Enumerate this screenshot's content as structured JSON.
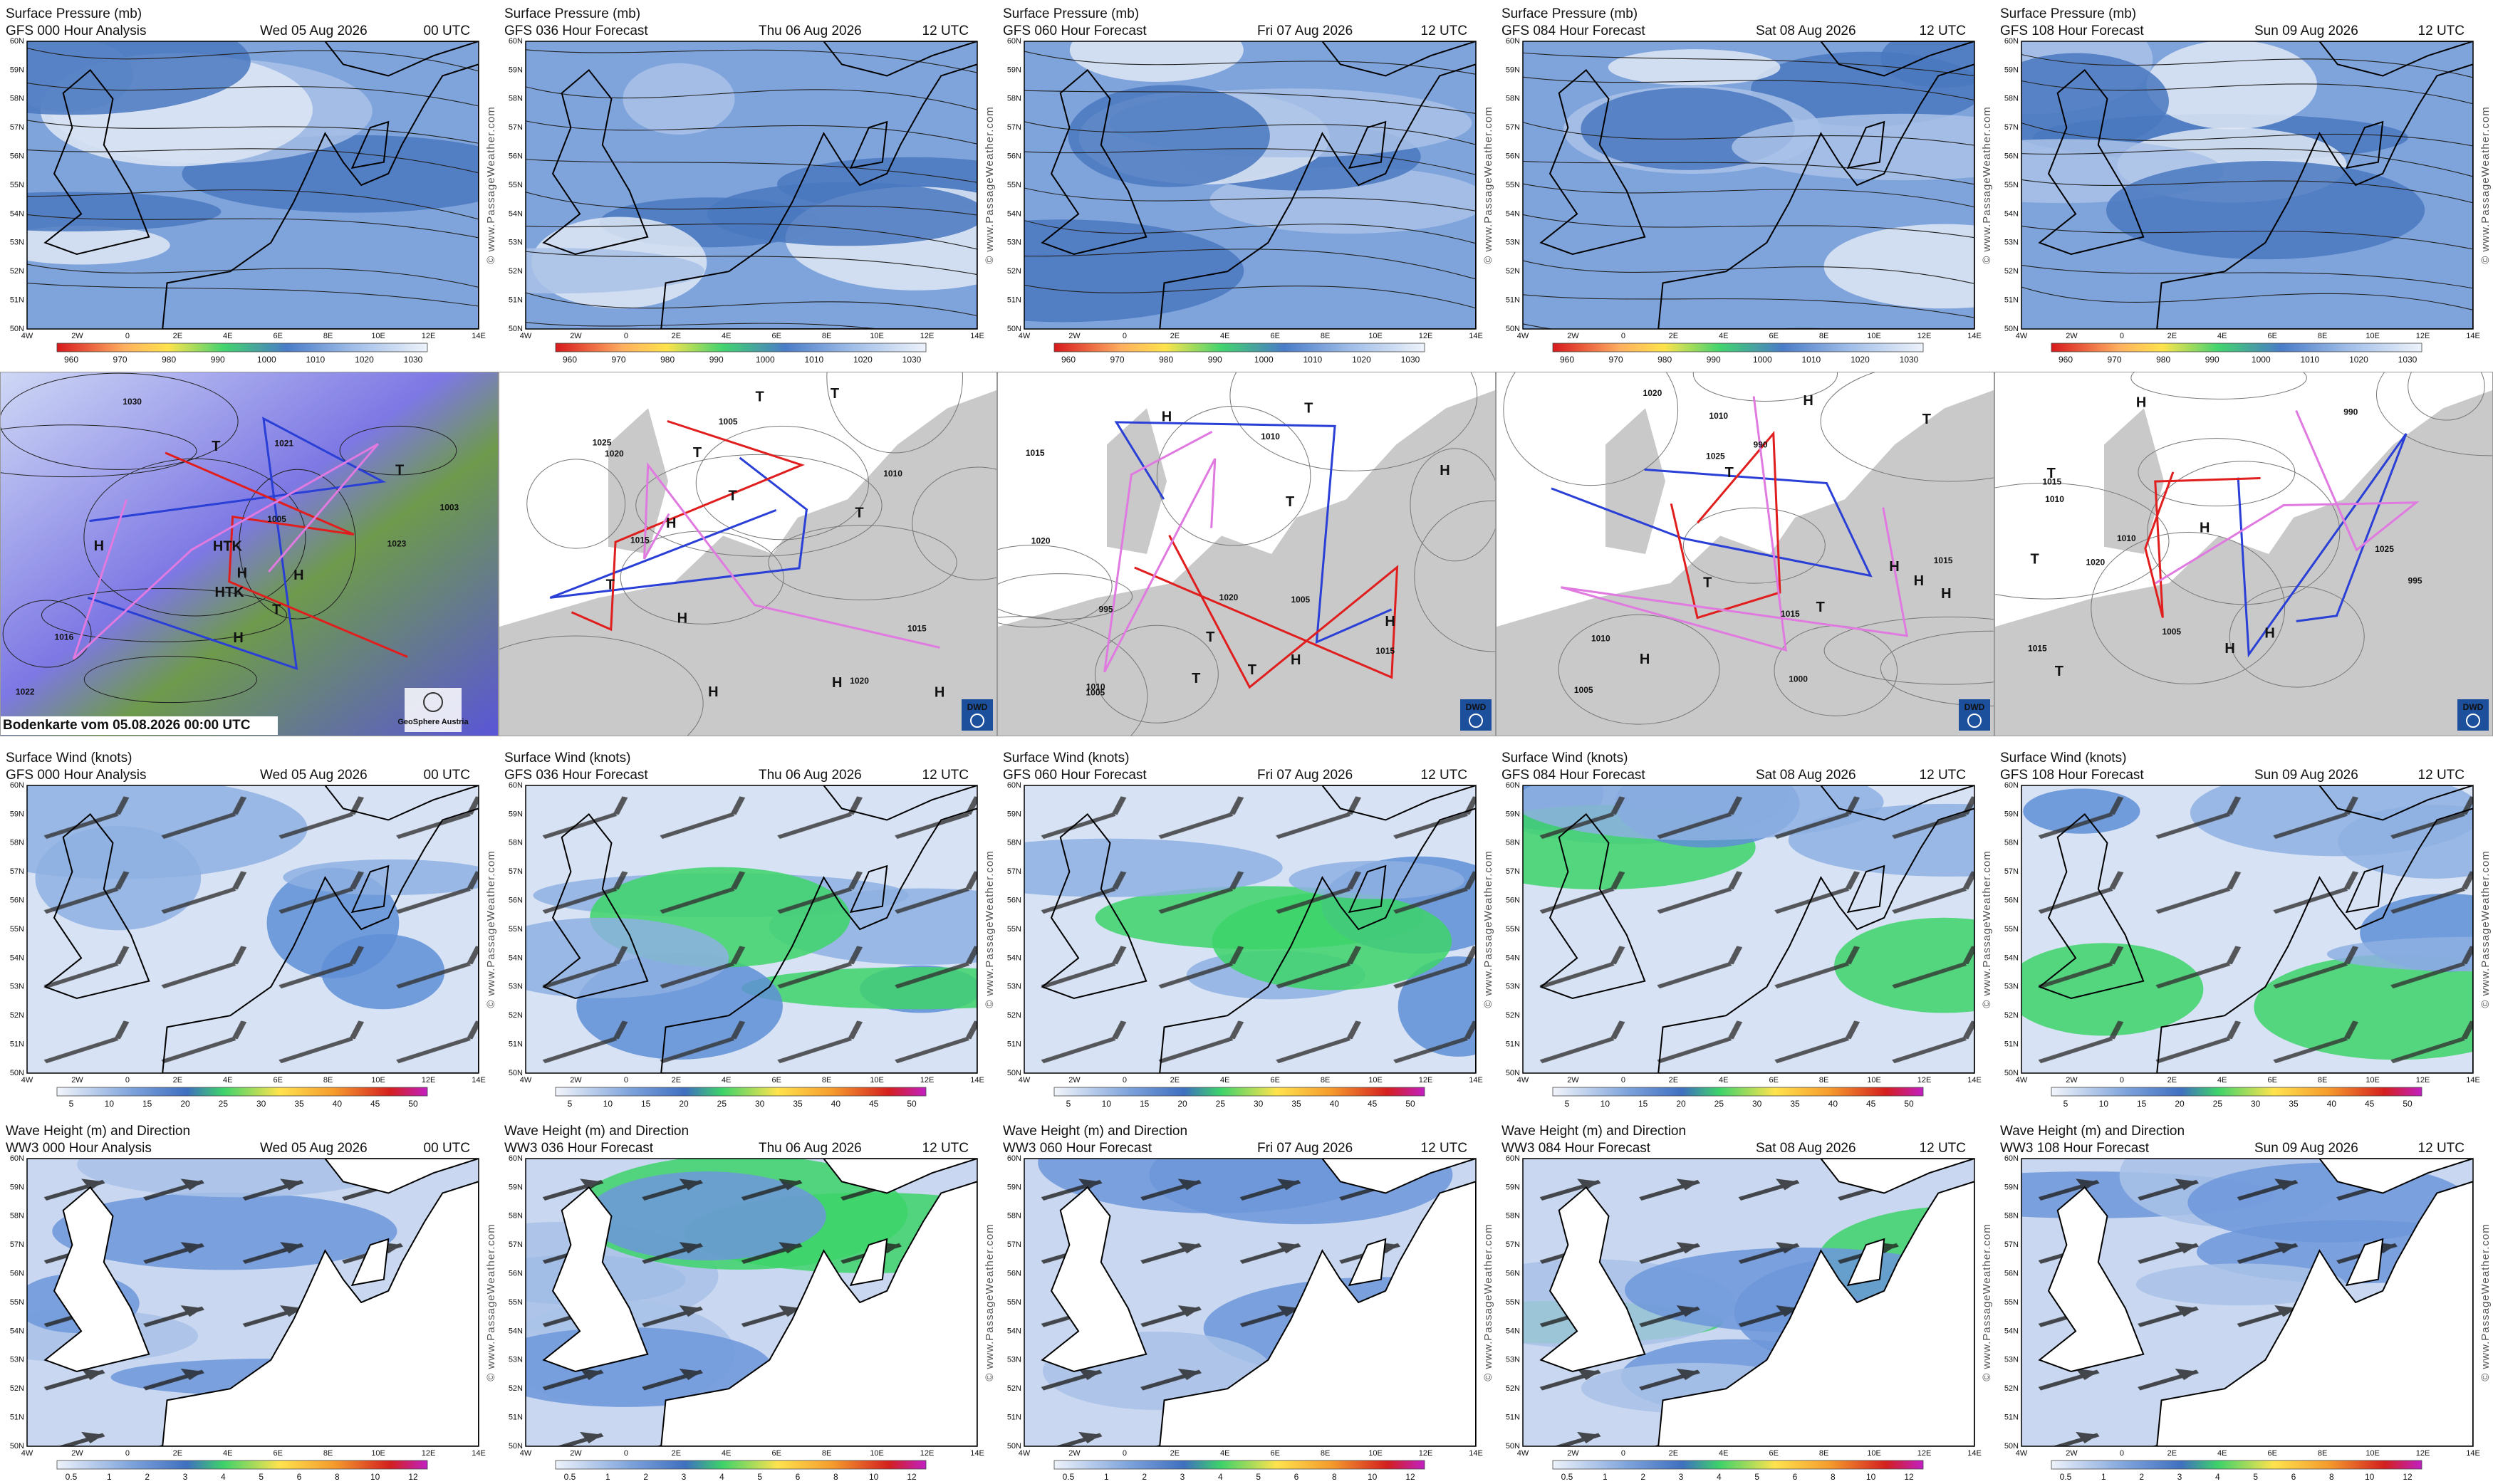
{
  "rows": [
    {
      "kind": "pressure",
      "panels": [
        {
          "title": "Surface Pressure (mb)",
          "model": "GFS 000 Hour Analysis",
          "date": "Wed 05 Aug 2026",
          "time": "00 UTC"
        },
        {
          "title": "Surface Pressure (mb)",
          "model": "GFS 036 Hour Forecast",
          "date": "Thu 06 Aug 2026",
          "time": "12 UTC"
        },
        {
          "title": "Surface Pressure (mb)",
          "model": "GFS 060 Hour Forecast",
          "date": "Fri 07 Aug 2026",
          "time": "12 UTC"
        },
        {
          "title": "Surface Pressure (mb)",
          "model": "GFS 084 Hour Forecast",
          "date": "Sat 08 Aug 2026",
          "time": "12 UTC"
        },
        {
          "title": "Surface Pressure (mb)",
          "model": "GFS 108 Hour Forecast",
          "date": "Sun 09 Aug 2026",
          "time": "12 UTC"
        }
      ],
      "colorbar": [
        "960",
        "970",
        "980",
        "990",
        "1000",
        "1010",
        "1020",
        "1030"
      ]
    },
    {
      "kind": "analysis",
      "panels": [
        {
          "caption": "Bodenkarte vom 05.08.2026 00:00 UTC",
          "logo": "GeoSphere Austria",
          "centers": [
            "HTK",
            "H",
            "1030",
            "T",
            "1021",
            "H",
            "1022",
            "HTK",
            "H",
            "1016",
            "T",
            "1003",
            "H",
            "1023",
            "T",
            "1005"
          ]
        },
        {
          "logo": "DWD",
          "centers": [
            "T",
            "1010",
            "T",
            "1015",
            "H",
            "T",
            "1020",
            "1005",
            "T",
            "H",
            "H",
            "1025",
            "T",
            "H",
            "1020",
            "T",
            "H",
            "1015"
          ]
        },
        {
          "logo": "DWD",
          "centers": [
            "T",
            "995",
            "1010",
            "H",
            "H",
            "1015",
            "T",
            "1020",
            "H",
            "1005",
            "T",
            "T",
            "H",
            "1020",
            "1010",
            "1015",
            "T",
            "1005"
          ]
        },
        {
          "logo": "DWD",
          "centers": [
            "T",
            "990",
            "1000",
            "H",
            "1015",
            "1020",
            "H",
            "T",
            "1010",
            "H",
            "T",
            "1015",
            "H",
            "1005",
            "T",
            "1010",
            "H",
            "1025"
          ]
        },
        {
          "logo": "DWD",
          "centers": [
            "990",
            "995",
            "T",
            "1005",
            "1010",
            "H",
            "1015",
            "H",
            "T",
            "1020",
            "H",
            "1025",
            "T",
            "1010",
            "H",
            "1015"
          ]
        }
      ]
    },
    {
      "kind": "wind",
      "panels": [
        {
          "title": "Surface Wind (knots)",
          "model": "GFS 000 Hour Analysis",
          "date": "Wed 05 Aug 2026",
          "time": "00 UTC"
        },
        {
          "title": "Surface Wind (knots)",
          "model": "GFS 036 Hour Forecast",
          "date": "Thu 06 Aug 2026",
          "time": "12 UTC"
        },
        {
          "title": "Surface Wind (knots)",
          "model": "GFS 060 Hour Forecast",
          "date": "Fri 07 Aug 2026",
          "time": "12 UTC"
        },
        {
          "title": "Surface Wind (knots)",
          "model": "GFS 084 Hour Forecast",
          "date": "Sat 08 Aug 2026",
          "time": "12 UTC"
        },
        {
          "title": "Surface Wind (knots)",
          "model": "GFS 108 Hour Forecast",
          "date": "Sun 09 Aug 2026",
          "time": "12 UTC"
        }
      ],
      "colorbar": [
        "5",
        "10",
        "15",
        "20",
        "25",
        "30",
        "35",
        "40",
        "45",
        "50"
      ]
    },
    {
      "kind": "wave",
      "panels": [
        {
          "title": "Wave Height (m) and Direction",
          "model": "WW3 000 Hour Analysis",
          "date": "Wed 05 Aug 2026",
          "time": "00 UTC"
        },
        {
          "title": "Wave Height (m) and Direction",
          "model": "WW3 036 Hour Forecast",
          "date": "Thu 06 Aug 2026",
          "time": "12 UTC"
        },
        {
          "title": "Wave Height (m) and Direction",
          "model": "WW3 060 Hour Forecast",
          "date": "Fri 07 Aug 2026",
          "time": "12 UTC"
        },
        {
          "title": "Wave Height (m) and Direction",
          "model": "WW3 084 Hour Forecast",
          "date": "Sat 08 Aug 2026",
          "time": "12 UTC"
        },
        {
          "title": "Wave Height (m) and Direction",
          "model": "WW3 108 Hour Forecast",
          "date": "Sun 09 Aug 2026",
          "time": "12 UTC"
        }
      ],
      "colorbar": [
        "0.5",
        "1",
        "2",
        "3",
        "4",
        "5",
        "6",
        "8",
        "10",
        "12"
      ]
    }
  ],
  "lat_labels": [
    "60N",
    "59N",
    "58N",
    "57N",
    "56N",
    "55N",
    "54N",
    "53N",
    "52N",
    "51N",
    "50N"
  ],
  "lon_labels": [
    "4W",
    "2W",
    "0",
    "2E",
    "4E",
    "6E",
    "8E",
    "10E",
    "12E",
    "14E"
  ],
  "watermark": "© www.PassageWeather.com"
}
